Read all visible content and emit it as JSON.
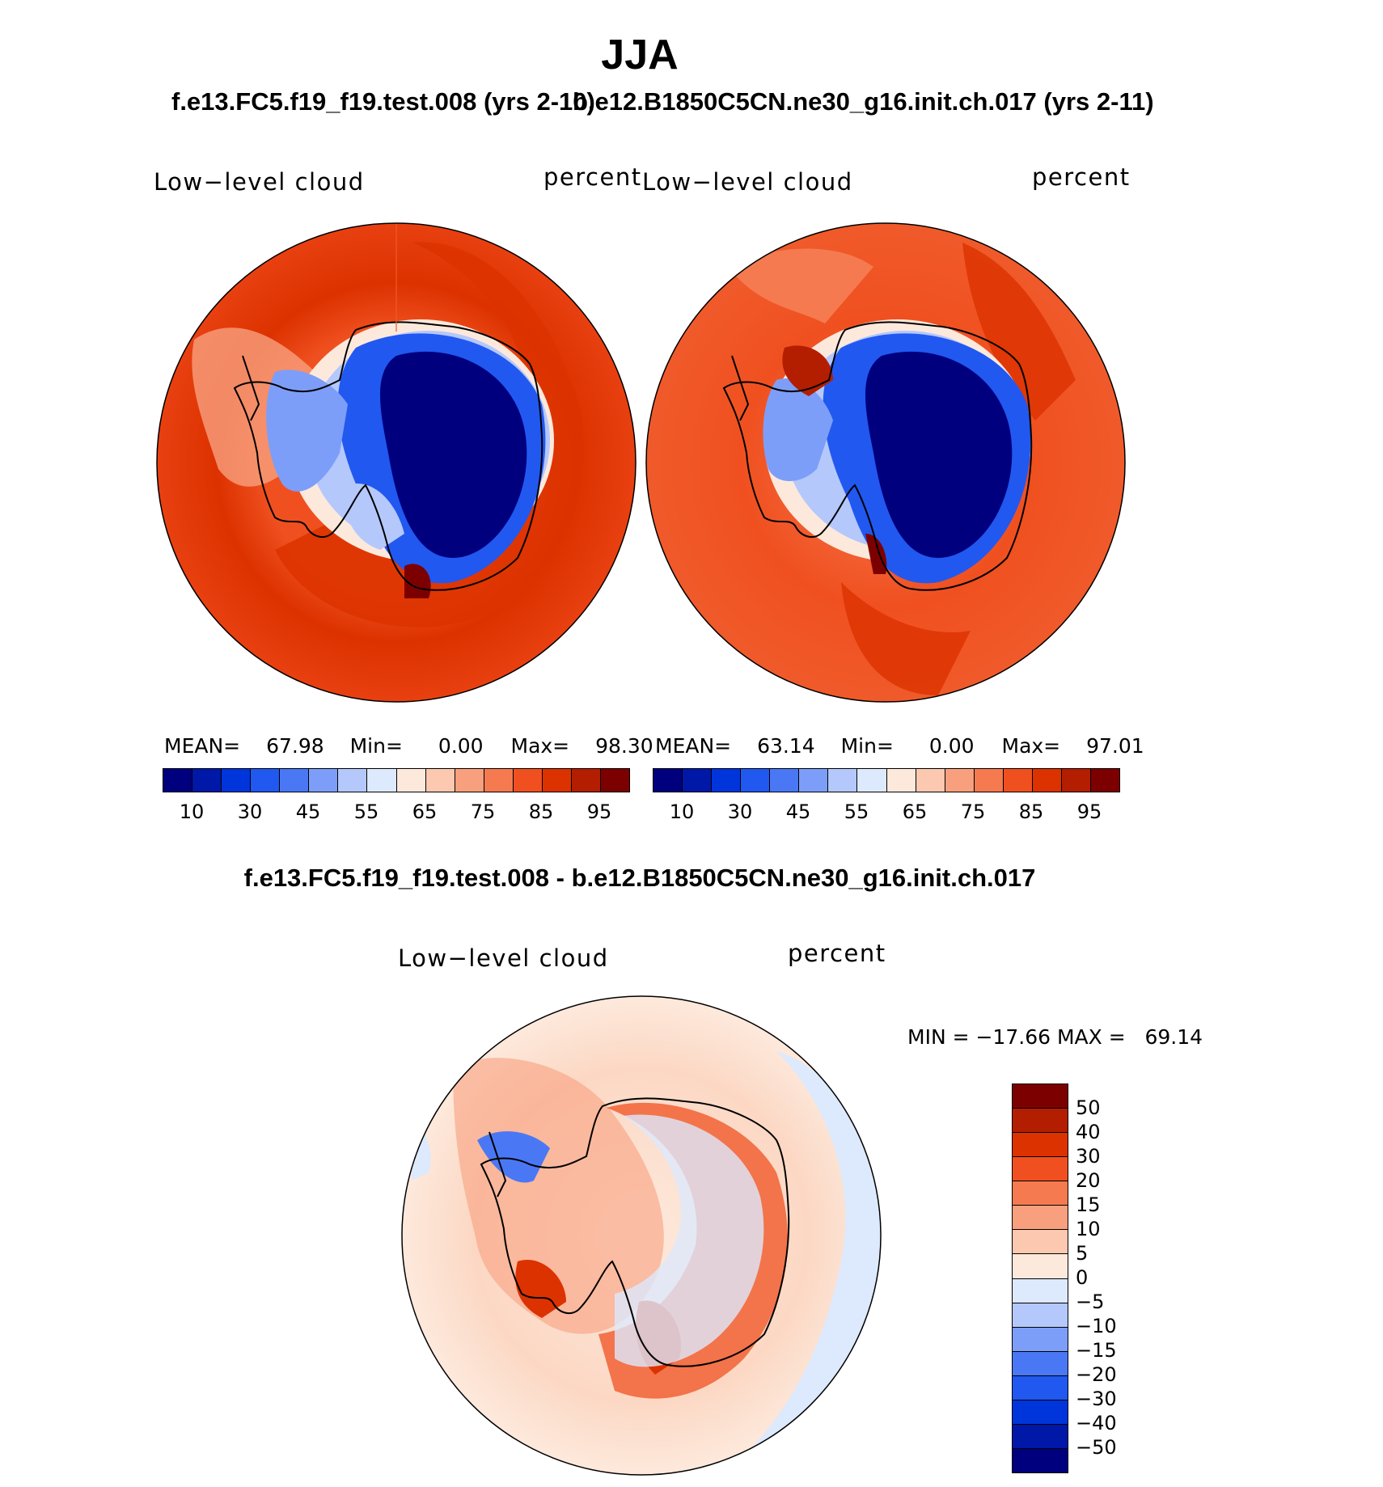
{
  "figure": {
    "season": "JJA",
    "variable": "Low−level cloud",
    "units": "percent"
  },
  "panels": [
    {
      "case": "f.e13.FC5.f19_f19.test.008 (yrs 2-10)",
      "mean_label": "MEAN=",
      "mean": "67.98",
      "min_label": "Min=",
      "min": "0.00",
      "max_label": "Max=",
      "max": "98.30"
    },
    {
      "case": "b.e12.B1850C5CN.ne30_g16.init.ch.017 (yrs 2-11)",
      "mean_label": "MEAN=",
      "mean": "63.14",
      "min_label": "Min=",
      "min": "0.00",
      "max_label": "Max=",
      "max": "97.01"
    }
  ],
  "diff_panel": {
    "title": "f.e13.FC5.f19_f19.test.008 - b.e12.B1850C5CN.ne30_g16.init.ch.017",
    "min_max_text": "MIN = −17.66 MAX =   69.14"
  },
  "colorbar_abs": {
    "colors": [
      "#00007f",
      "#0018a8",
      "#0035dc",
      "#2158f0",
      "#4a78f5",
      "#7d9ef8",
      "#b4c8fb",
      "#dde9fc",
      "#fde9dc",
      "#fcc8b0",
      "#f8a07e",
      "#f57a50",
      "#f05020",
      "#dc3200",
      "#b41e00",
      "#7d0000"
    ],
    "tick_labels": [
      "10",
      "30",
      "45",
      "55",
      "65",
      "75",
      "85",
      "95"
    ]
  },
  "colorbar_diff": {
    "colors": [
      "#7d0000",
      "#b41e00",
      "#dc3200",
      "#f05020",
      "#f57a50",
      "#f8a07e",
      "#fcc8b0",
      "#fde9dc",
      "#dde9fc",
      "#b4c8fb",
      "#7d9ef8",
      "#4a78f5",
      "#2158f0",
      "#0035dc",
      "#0018a8",
      "#00007f"
    ],
    "tick_labels": [
      "50",
      "40",
      "30",
      "20",
      "15",
      "10",
      "5",
      "0",
      "−5",
      "−10",
      "−15",
      "−20",
      "−30",
      "−40",
      "−50"
    ]
  }
}
